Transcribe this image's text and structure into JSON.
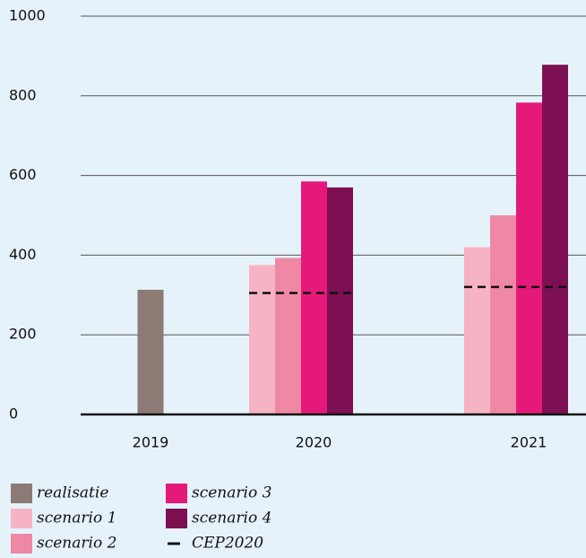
{
  "chart_data": {
    "type": "bar",
    "categories": [
      "2019",
      "2020",
      "2021"
    ],
    "series": [
      {
        "name": "realisatie",
        "color": "#8c7b75",
        "values": [
          313,
          null,
          null
        ]
      },
      {
        "name": "scenario 1",
        "color": "#f6b3c4",
        "values": [
          null,
          375,
          420
        ]
      },
      {
        "name": "scenario 2",
        "color": "#ef88a4",
        "values": [
          null,
          393,
          500
        ]
      },
      {
        "name": "scenario 3",
        "color": "#e5197a",
        "values": [
          null,
          585,
          783
        ]
      },
      {
        "name": "scenario 4",
        "color": "#7d1052",
        "values": [
          null,
          570,
          878
        ]
      },
      {
        "name": "CEP2020",
        "color": "#111111",
        "type": "dashed-line",
        "values": [
          null,
          305,
          320
        ]
      }
    ],
    "ylim": [
      0,
      1000
    ],
    "yticks": [
      0,
      200,
      400,
      600,
      800,
      1000
    ],
    "grid": true
  }
}
